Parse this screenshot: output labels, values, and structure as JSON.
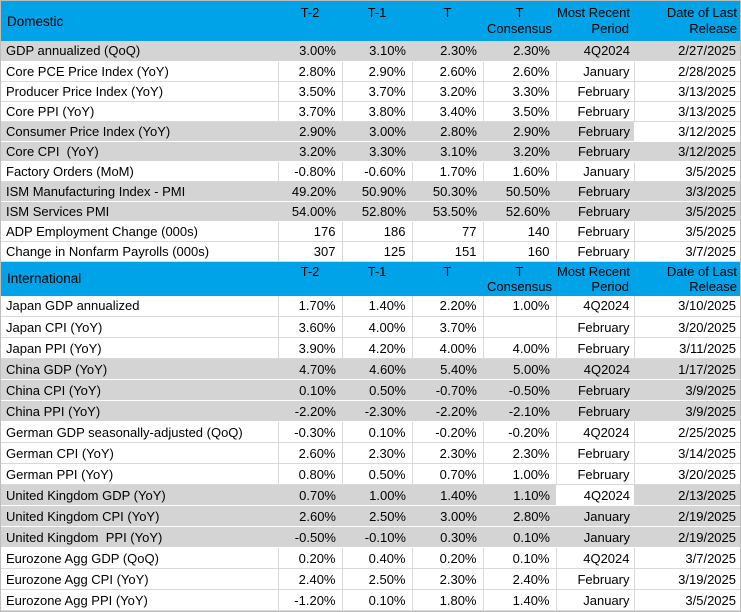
{
  "colors": {
    "header_bg": "#00A2E8",
    "header_text": "#000000",
    "shaded_row_bg": "#D4D4D4",
    "plain_row_bg": "#FFFFFF",
    "gridline": "#D9D9D9",
    "outer_border": "#BDBDBD"
  },
  "header_labels": {
    "t2": "T-2",
    "t1": "T-1",
    "t": "T",
    "consensus": "T\nConsensus",
    "period": "Most Recent\nPeriod",
    "date": "Date of Last\nRelease"
  },
  "chart_data": [
    {
      "type": "table",
      "title": "Domestic",
      "columns": [
        "Domestic",
        "T-2",
        "T-1",
        "T",
        "T Consensus",
        "Most Recent Period",
        "Date of Last Release"
      ],
      "rows": [
        {
          "label": "GDP annualized (QoQ)",
          "t2": "3.00%",
          "t1": "3.10%",
          "t": "2.30%",
          "consensus": "2.30%",
          "period": "4Q2024",
          "date": "2/27/2025",
          "shade": "gray"
        },
        {
          "label": "Core PCE Price Index (YoY)",
          "t2": "2.80%",
          "t1": "2.90%",
          "t": "2.60%",
          "consensus": "2.60%",
          "period": "January",
          "date": "2/28/2025",
          "shade": "white"
        },
        {
          "label": "Producer Price Index (YoY)",
          "t2": "3.50%",
          "t1": "3.70%",
          "t": "3.20%",
          "consensus": "3.30%",
          "period": "February",
          "date": "3/13/2025",
          "shade": "white"
        },
        {
          "label": "Core PPI (YoY)",
          "t2": "3.70%",
          "t1": "3.80%",
          "t": "3.40%",
          "consensus": "3.50%",
          "period": "February",
          "date": "3/13/2025",
          "shade": "white"
        },
        {
          "label": "Consumer Price Index (YoY)",
          "t2": "2.90%",
          "t1": "3.00%",
          "t": "2.80%",
          "consensus": "2.90%",
          "period": "February",
          "date": "3/12/2025",
          "shade": "gray",
          "white_cells": [
            "date"
          ]
        },
        {
          "label": "Core CPI  (YoY)",
          "t2": "3.20%",
          "t1": "3.30%",
          "t": "3.10%",
          "consensus": "3.20%",
          "period": "February",
          "date": "3/12/2025",
          "shade": "gray"
        },
        {
          "label": "Factory Orders (MoM)",
          "t2": "-0.80%",
          "t1": "-0.60%",
          "t": "1.70%",
          "consensus": "1.60%",
          "period": "January",
          "date": "3/5/2025",
          "shade": "white"
        },
        {
          "label": "ISM Manufacturing Index - PMI",
          "t2": "49.20%",
          "t1": "50.90%",
          "t": "50.30%",
          "consensus": "50.50%",
          "period": "February",
          "date": "3/3/2025",
          "shade": "gray"
        },
        {
          "label": "ISM Services PMI",
          "t2": "54.00%",
          "t1": "52.80%",
          "t": "53.50%",
          "consensus": "52.60%",
          "period": "February",
          "date": "3/5/2025",
          "shade": "gray"
        },
        {
          "label": "ADP Employment Change (000s)",
          "t2": "176",
          "t1": "186",
          "t": "77",
          "consensus": "140",
          "period": "February",
          "date": "3/5/2025",
          "shade": "white"
        },
        {
          "label": "Change in Nonfarm Payrolls (000s)",
          "t2": "307",
          "t1": "125",
          "t": "151",
          "consensus": "160",
          "period": "February",
          "date": "3/7/2025",
          "shade": "white"
        }
      ]
    },
    {
      "type": "table",
      "title": "International",
      "columns": [
        "International",
        "T-2",
        "T-1",
        "T",
        "T Consensus",
        "Most Recent Period",
        "Date of Last Release"
      ],
      "rows": [
        {
          "label": "Japan GDP annualized",
          "t2": "1.70%",
          "t1": "1.40%",
          "t": "2.20%",
          "consensus": "1.00%",
          "period": "4Q2024",
          "date": "3/10/2025",
          "shade": "white"
        },
        {
          "label": "Japan CPI (YoY)",
          "t2": "3.60%",
          "t1": "4.00%",
          "t": "3.70%",
          "consensus": "",
          "period": "February",
          "date": "3/20/2025",
          "shade": "white"
        },
        {
          "label": "Japan PPI (YoY)",
          "t2": "3.90%",
          "t1": "4.20%",
          "t": "4.00%",
          "consensus": "4.00%",
          "period": "February",
          "date": "3/11/2025",
          "shade": "white"
        },
        {
          "label": "China GDP (YoY)",
          "t2": "4.70%",
          "t1": "4.60%",
          "t": "5.40%",
          "consensus": "5.00%",
          "period": "4Q2024",
          "date": "1/17/2025",
          "shade": "gray"
        },
        {
          "label": "China CPI (YoY)",
          "t2": "0.10%",
          "t1": "0.50%",
          "t": "-0.70%",
          "consensus": "-0.50%",
          "period": "February",
          "date": "3/9/2025",
          "shade": "gray"
        },
        {
          "label": "China PPI (YoY)",
          "t2": "-2.20%",
          "t1": "-2.30%",
          "t": "-2.20%",
          "consensus": "-2.10%",
          "period": "February",
          "date": "3/9/2025",
          "shade": "gray"
        },
        {
          "label": "German GDP seasonally-adjusted (QoQ)",
          "t2": "-0.30%",
          "t1": "0.10%",
          "t": "-0.20%",
          "consensus": "-0.20%",
          "period": "4Q2024",
          "date": "2/25/2025",
          "shade": "white"
        },
        {
          "label": "German CPI (YoY)",
          "t2": "2.60%",
          "t1": "2.30%",
          "t": "2.30%",
          "consensus": "2.30%",
          "period": "February",
          "date": "3/14/2025",
          "shade": "white"
        },
        {
          "label": "German PPI (YoY)",
          "t2": "0.80%",
          "t1": "0.50%",
          "t": "0.70%",
          "consensus": "1.00%",
          "period": "February",
          "date": "3/20/2025",
          "shade": "white"
        },
        {
          "label": "United Kingdom GDP (YoY)",
          "t2": "0.70%",
          "t1": "1.00%",
          "t": "1.40%",
          "consensus": "1.10%",
          "period": "4Q2024",
          "date": "2/13/2025",
          "shade": "gray",
          "white_cells": [
            "period"
          ]
        },
        {
          "label": "United Kingdom CPI (YoY)",
          "t2": "2.60%",
          "t1": "2.50%",
          "t": "3.00%",
          "consensus": "2.80%",
          "period": "January",
          "date": "2/19/2025",
          "shade": "gray"
        },
        {
          "label": "United Kingdom  PPI (YoY)",
          "t2": "-0.50%",
          "t1": "-0.10%",
          "t": "0.30%",
          "consensus": "0.10%",
          "period": "January",
          "date": "2/19/2025",
          "shade": "gray"
        },
        {
          "label": "Eurozone Agg GDP (QoQ)",
          "t2": "0.20%",
          "t1": "0.40%",
          "t": "0.20%",
          "consensus": "0.10%",
          "period": "4Q2024",
          "date": "3/7/2025",
          "shade": "white"
        },
        {
          "label": "Eurozone Agg CPI (YoY)",
          "t2": "2.40%",
          "t1": "2.50%",
          "t": "2.30%",
          "consensus": "2.40%",
          "period": "February",
          "date": "3/19/2025",
          "shade": "white"
        },
        {
          "label": "Eurozone Agg PPI (YoY)",
          "t2": "-1.20%",
          "t1": "0.10%",
          "t": "1.80%",
          "consensus": "1.40%",
          "period": "January",
          "date": "3/5/2025",
          "shade": "white"
        }
      ]
    }
  ]
}
